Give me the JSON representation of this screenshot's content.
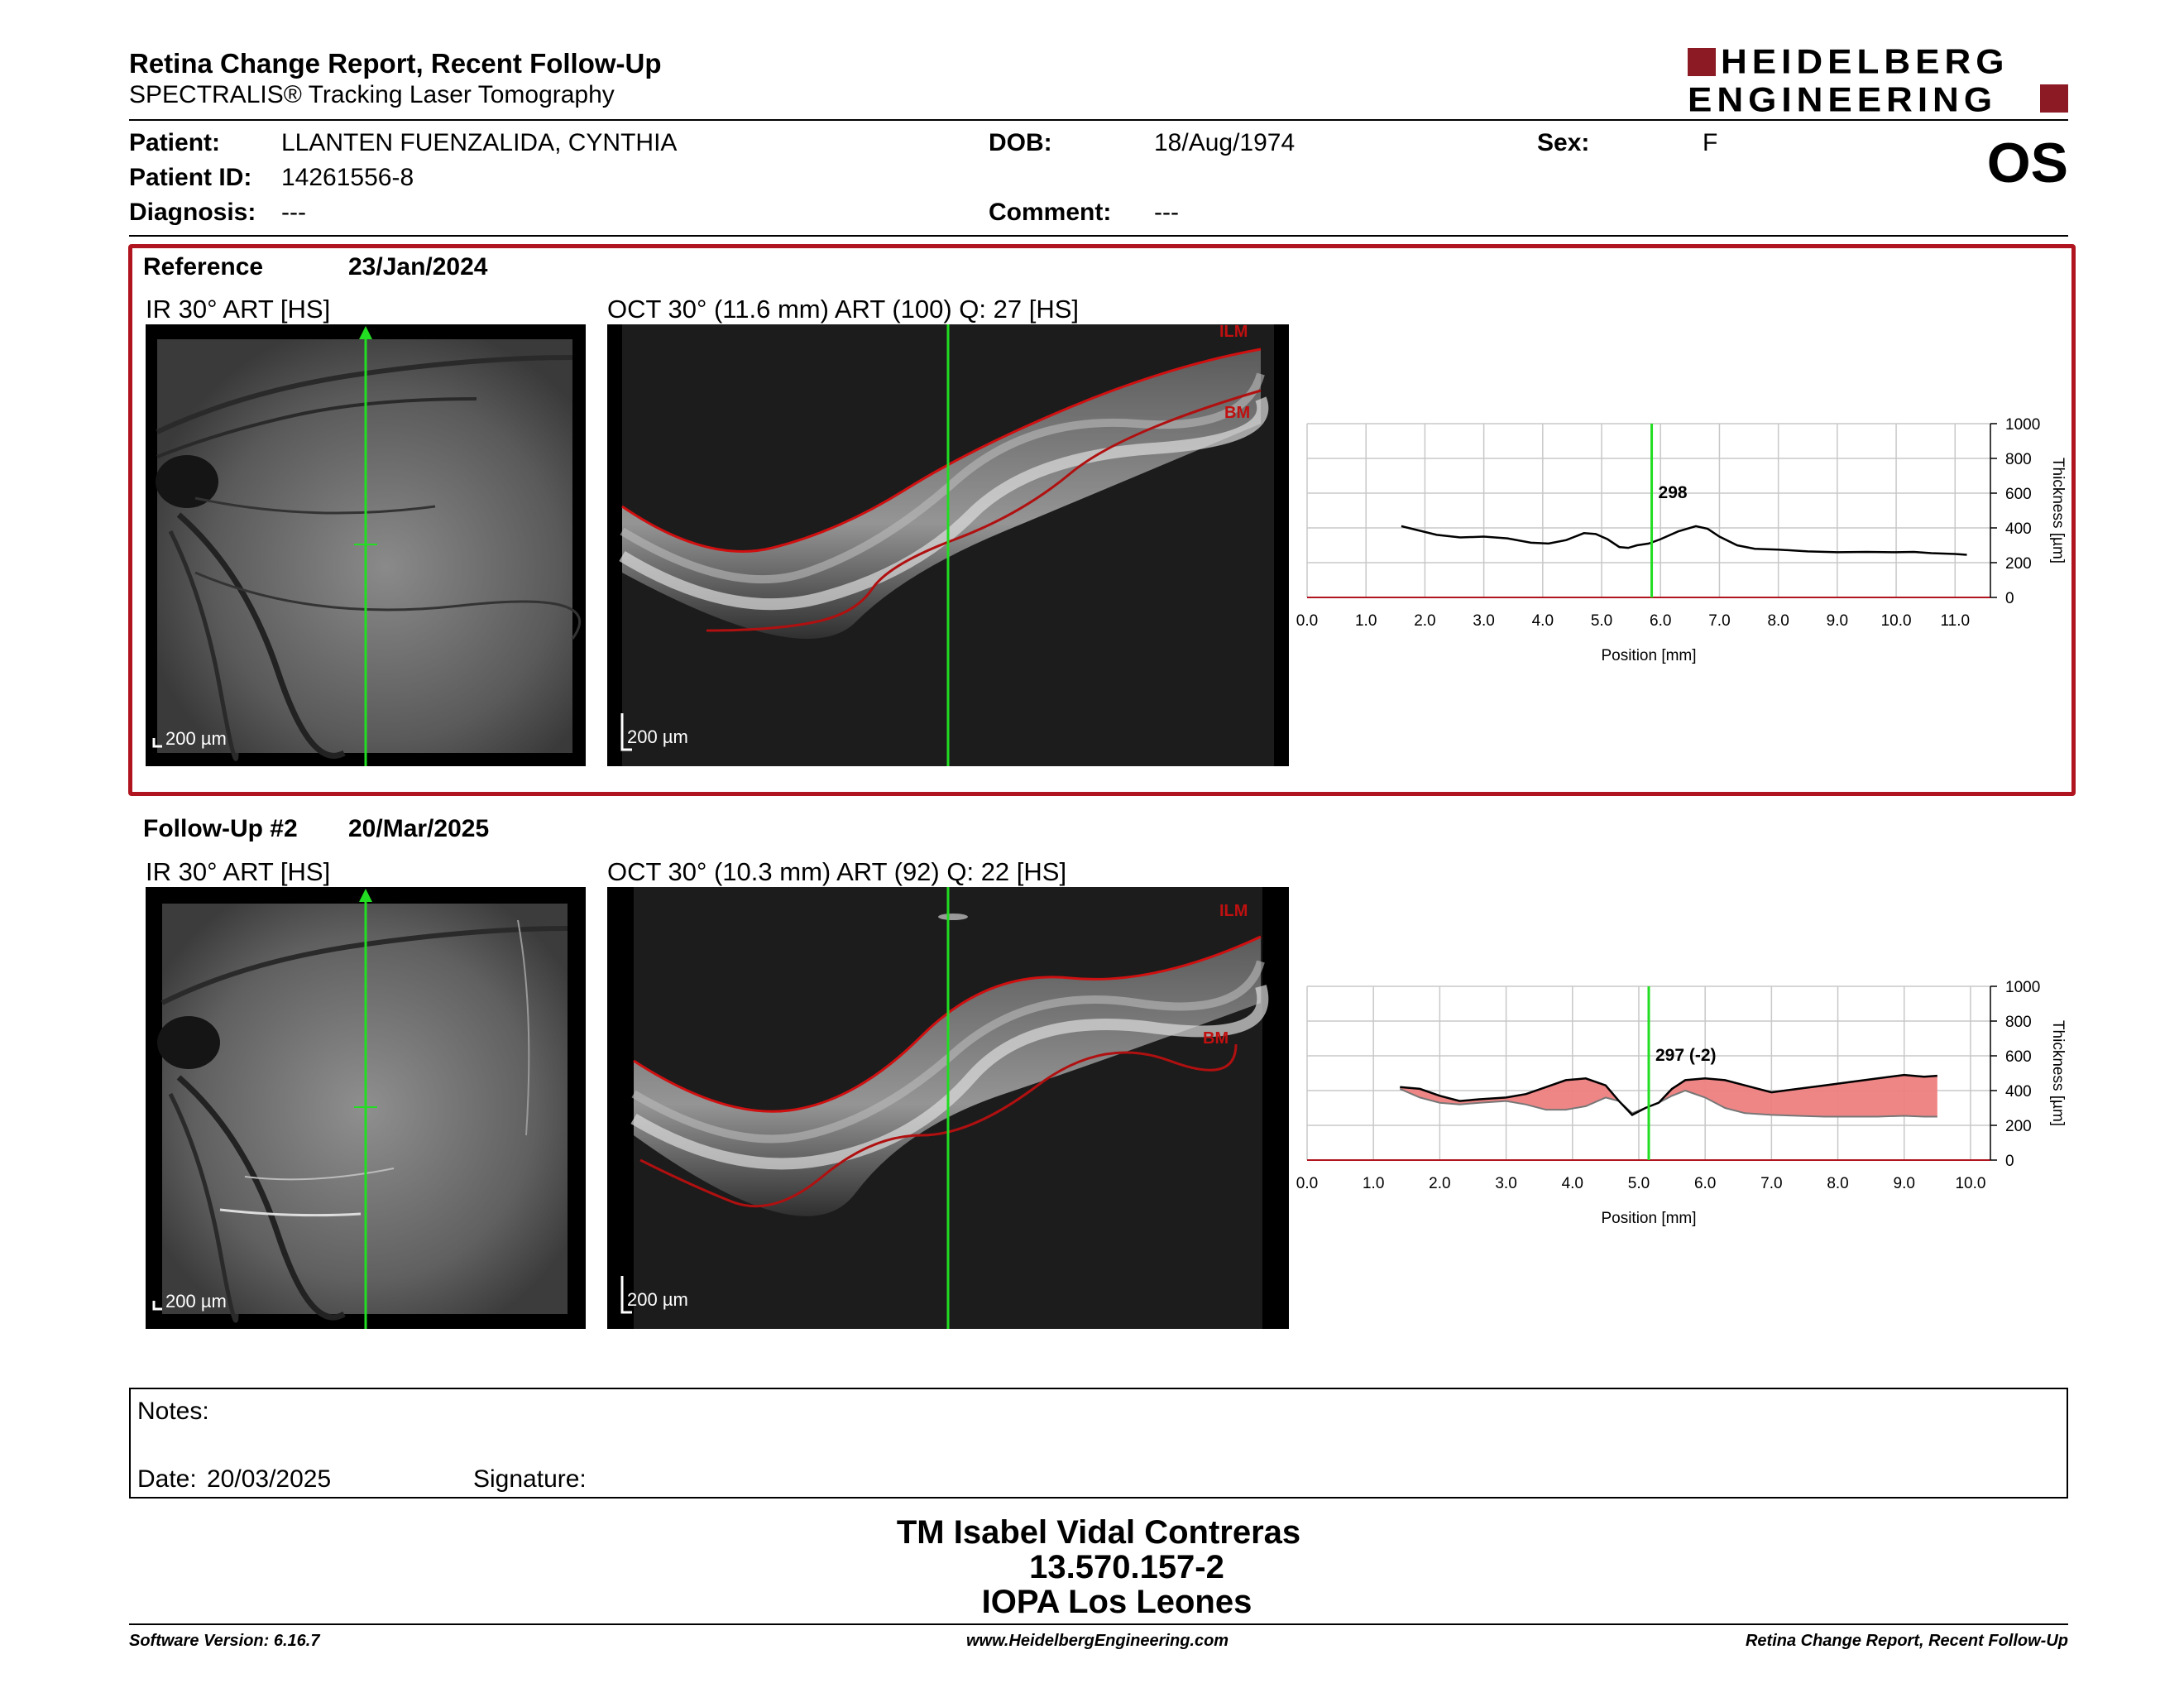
{
  "header": {
    "title": "Retina Change Report, Recent Follow-Up",
    "subtitle": "SPECTRALIS® Tracking Laser Tomography",
    "logo_line1": "HEIDELBERG",
    "logo_line2": "ENGINEERING",
    "brand_color": "#8b1a24"
  },
  "patient": {
    "patient_label": "Patient:",
    "patient_value": "LLANTEN FUENZALIDA, CYNTHIA",
    "id_label": "Patient ID:",
    "id_value": "14261556-8",
    "diagnosis_label": "Diagnosis:",
    "diagnosis_value": "---",
    "dob_label": "DOB:",
    "dob_value": "18/Aug/1974",
    "comment_label": "Comment:",
    "comment_value": "---",
    "sex_label": "Sex:",
    "sex_value": "F",
    "eye": "OS"
  },
  "reference": {
    "label": "Reference",
    "date": "23/Jan/2024",
    "ir_caption": "IR 30° ART [HS]",
    "oct_caption": "OCT 30° (11.6 mm) ART (100) Q: 27 [HS]",
    "scale_ir": "200 µm",
    "scale_oct": "200 µm",
    "ilm_label": "ILM",
    "bm_label": "BM"
  },
  "followup": {
    "label": "Follow-Up #2",
    "date": "20/Mar/2025",
    "ir_caption": "IR 30° ART [HS]",
    "oct_caption": "OCT 30° (10.3 mm) ART (92) Q: 22 [HS]",
    "scale_ir": "200 µm",
    "scale_oct": "200 µm",
    "ilm_label": "ILM",
    "bm_label": "BM"
  },
  "chart_data": [
    {
      "type": "line",
      "xlabel": "Position [mm]",
      "ylabel": "Thickness [µm]",
      "xlim": [
        0,
        11.6
      ],
      "ylim": [
        0,
        1000
      ],
      "x_ticks": [
        "0.0",
        "1.0",
        "2.0",
        "3.0",
        "4.0",
        "5.0",
        "6.0",
        "7.0",
        "8.0",
        "9.0",
        "10.0",
        "11.0"
      ],
      "y_ticks": [
        "0",
        "200",
        "400",
        "600",
        "800",
        "1000"
      ],
      "grid": true,
      "cursor_x": 5.85,
      "cursor_label": "298",
      "series": [
        {
          "x": [
            1.6,
            1.9,
            2.2,
            2.6,
            3.0,
            3.4,
            3.8,
            4.1,
            4.4,
            4.7,
            4.9,
            5.1,
            5.3,
            5.45,
            5.6,
            5.8,
            6.0,
            6.3,
            6.6,
            6.8,
            7.0,
            7.3,
            7.6,
            8.0,
            8.5,
            9.0,
            9.5,
            10.0,
            10.3,
            10.6,
            11.0,
            11.2
          ],
          "y": [
            410,
            385,
            360,
            345,
            350,
            340,
            315,
            310,
            330,
            370,
            365,
            335,
            290,
            285,
            300,
            310,
            335,
            380,
            410,
            395,
            350,
            300,
            280,
            275,
            265,
            260,
            262,
            260,
            262,
            255,
            250,
            245
          ]
        }
      ]
    },
    {
      "type": "area",
      "xlabel": "Position [mm]",
      "ylabel": "Thickness [µm]",
      "xlim": [
        0,
        10.3
      ],
      "ylim": [
        0,
        1000
      ],
      "x_ticks": [
        "0.0",
        "1.0",
        "2.0",
        "3.0",
        "4.0",
        "5.0",
        "6.0",
        "7.0",
        "8.0",
        "9.0",
        "10.0"
      ],
      "y_ticks": [
        "0",
        "200",
        "400",
        "600",
        "800",
        "1000"
      ],
      "grid": true,
      "cursor_x": 5.15,
      "cursor_label": "297 (-2)",
      "series": [
        {
          "x": [
            1.4,
            1.7,
            2.0,
            2.3,
            2.6,
            3.0,
            3.3,
            3.6,
            3.9,
            4.2,
            4.5,
            4.7,
            4.9,
            5.1,
            5.3,
            5.5,
            5.7,
            6.0,
            6.3,
            6.6,
            7.0,
            7.4,
            7.8,
            8.2,
            8.6,
            9.0,
            9.3,
            9.5
          ],
          "y": [
            420,
            410,
            370,
            340,
            350,
            360,
            380,
            420,
            460,
            470,
            430,
            340,
            260,
            300,
            330,
            410,
            460,
            470,
            460,
            430,
            390,
            410,
            430,
            450,
            470,
            490,
            480,
            485
          ]
        },
        {
          "x": [
            1.4,
            1.7,
            2.0,
            2.3,
            2.6,
            3.0,
            3.3,
            3.6,
            3.9,
            4.2,
            4.5,
            4.7,
            4.9,
            5.1,
            5.3,
            5.5,
            5.7,
            6.0,
            6.3,
            6.6,
            7.0,
            7.4,
            7.8,
            8.2,
            8.6,
            9.0,
            9.3,
            9.5
          ],
          "y": [
            410,
            360,
            330,
            320,
            330,
            340,
            320,
            290,
            290,
            310,
            360,
            340,
            270,
            300,
            330,
            370,
            400,
            360,
            300,
            270,
            260,
            255,
            250,
            250,
            250,
            255,
            250,
            250
          ]
        }
      ]
    }
  ],
  "notes": {
    "label": "Notes:",
    "date_label": "Date:",
    "date_value": "20/03/2025",
    "signature_label": "Signature:"
  },
  "signatory": {
    "name": "TM Isabel Vidal Contreras",
    "rut": "13.570.157-2",
    "institution": "IOPA Los Leones"
  },
  "footer": {
    "software": "Software Version: 6.16.7",
    "website": "www.HeidelbergEngineering.com",
    "report_name": "Retina Change Report, Recent Follow-Up"
  }
}
